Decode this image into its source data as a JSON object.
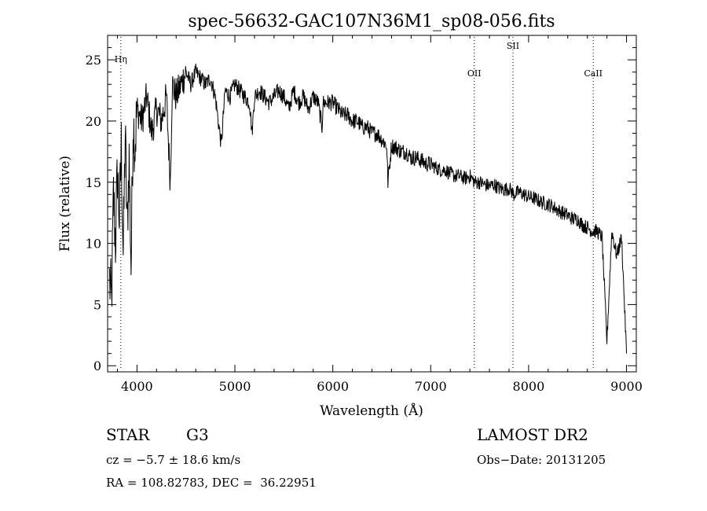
{
  "chart_data": {
    "type": "line",
    "title": "spec-56632-GAC107N36M1_sp08-056.fits",
    "xlabel": "Wavelength (Å)",
    "ylabel": "Flux (relative)",
    "xlim": [
      3700,
      9100
    ],
    "ylim": [
      -0.5,
      27
    ],
    "x_ticks": [
      4000,
      5000,
      6000,
      7000,
      8000,
      9000
    ],
    "y_ticks": [
      0,
      5,
      10,
      15,
      20,
      25
    ],
    "grid": false,
    "line_color": "#000000",
    "spectral_lines": [
      {
        "label": "Hη",
        "x": 3835
      },
      {
        "label": "OII",
        "x": 7445
      },
      {
        "label": "SII",
        "x": 7840
      },
      {
        "label": "CaII",
        "x": 8660
      }
    ],
    "series": [
      {
        "x": [
          3720,
          3740,
          3760,
          3780,
          3800,
          3820,
          3840,
          3860,
          3880,
          3900,
          3920,
          3940,
          3960,
          3980,
          4000,
          4050,
          4100,
          4150,
          4200,
          4250,
          4300,
          4340,
          4360,
          4400,
          4450,
          4500,
          4550,
          4600,
          4650,
          4700,
          4750,
          4800,
          4861,
          4900,
          4950,
          5000,
          5050,
          5100,
          5150,
          5175,
          5200,
          5250,
          5300,
          5350,
          5400,
          5450,
          5500,
          5550,
          5600,
          5650,
          5700,
          5750,
          5800,
          5850,
          5890,
          5900,
          5950,
          6000,
          6050,
          6100,
          6150,
          6200,
          6250,
          6300,
          6350,
          6400,
          6450,
          6500,
          6550,
          6563,
          6600,
          6650,
          6700,
          6750,
          6800,
          6850,
          6900,
          6950,
          7000,
          7050,
          7100,
          7150,
          7200,
          7250,
          7300,
          7350,
          7400,
          7450,
          7500,
          7550,
          7600,
          7650,
          7700,
          7750,
          7800,
          7850,
          7900,
          7950,
          8000,
          8050,
          8100,
          8150,
          8200,
          8250,
          8300,
          8350,
          8400,
          8450,
          8500,
          8550,
          8600,
          8650,
          8700,
          8750,
          8800,
          8850,
          8900,
          8950,
          9000
        ],
        "y": [
          7,
          5,
          14,
          10,
          16,
          12,
          18,
          9,
          19,
          11,
          17,
          8,
          20,
          18,
          21,
          20,
          22,
          19,
          21,
          20,
          22,
          15,
          23,
          22,
          23,
          24,
          23,
          24,
          23.5,
          23,
          23.5,
          22,
          18,
          22.5,
          22,
          23,
          22.5,
          22,
          21.5,
          19,
          22,
          22.5,
          22,
          21.5,
          22,
          22.5,
          22,
          21,
          22.5,
          21.5,
          22,
          21,
          22,
          21.5,
          19.5,
          21.5,
          21.5,
          21.5,
          21,
          20.5,
          20.5,
          20,
          20,
          19.5,
          19.5,
          19,
          19,
          18.5,
          18,
          15,
          18,
          17.8,
          17.5,
          17.5,
          17,
          17,
          16.8,
          16.5,
          16.5,
          16.2,
          16,
          16,
          15.7,
          15.5,
          15.5,
          15.3,
          15.5,
          15,
          15,
          14.8,
          14.7,
          14.8,
          14.5,
          14.4,
          14.5,
          14,
          14.2,
          14,
          13.8,
          13.7,
          13.5,
          13.3,
          13.2,
          13,
          12.7,
          12.5,
          12.3,
          12,
          12,
          11.5,
          11.3,
          11,
          11,
          10.5,
          2,
          11,
          9,
          10.5,
          1
        ]
      }
    ]
  },
  "footer": {
    "object_class": "STAR",
    "subclass": "G3",
    "survey": "LAMOST DR2",
    "cz": "cz = −5.7 ± 18.6 km/s",
    "obs_date": "Obs−Date: 20131205",
    "coords": "RA = 108.82783, DEC =  36.22951"
  }
}
